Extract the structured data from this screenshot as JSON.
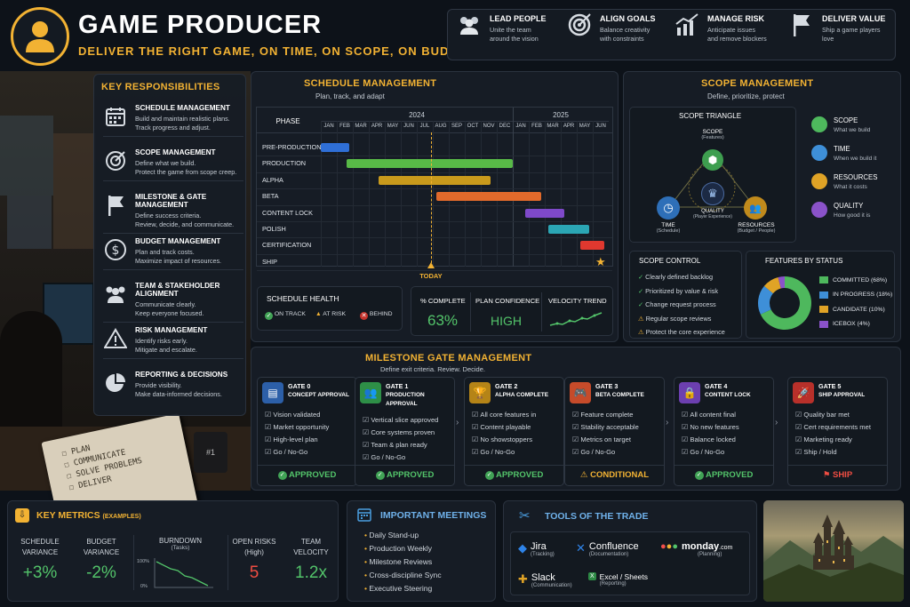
{
  "header": {
    "title": "GAME PRODUCER",
    "subtitle": "DELIVER THE RIGHT GAME, ON TIME, ON SCOPE, ON BUDGET",
    "pillars": [
      {
        "title": "LEAD PEOPLE",
        "desc1": "Unite the team",
        "desc2": "around the vision",
        "icon": "people-icon"
      },
      {
        "title": "ALIGN GOALS",
        "desc1": "Balance creativity",
        "desc2": "with constraints",
        "icon": "target-icon"
      },
      {
        "title": "MANAGE RISK",
        "desc1": "Anticipate issues",
        "desc2": "and remove blockers",
        "icon": "chart-icon"
      },
      {
        "title": "DELIVER VALUE",
        "desc1": "Ship a game players",
        "desc2": "love",
        "icon": "flag-icon"
      }
    ]
  },
  "responsibilities": {
    "title": "KEY RESPONSIBILITIES",
    "items": [
      {
        "title": "SCHEDULE MANAGEMENT",
        "d1": "Build and maintain realistic plans.",
        "d2": "Track progress and adjust.",
        "icon": "calendar-icon"
      },
      {
        "title": "SCOPE MANAGEMENT",
        "d1": "Define what we build.",
        "d2": "Protect the game from scope creep.",
        "icon": "target-icon"
      },
      {
        "title": "MILESTONE & GATE MANAGEMENT",
        "d1": "Define success criteria.",
        "d2": "Review, decide, and communicate.",
        "icon": "flag-icon"
      },
      {
        "title": "BUDGET MANAGEMENT",
        "d1": "Plan and track costs.",
        "d2": "Maximize impact of resources.",
        "icon": "dollar-icon"
      },
      {
        "title": "TEAM & STAKEHOLDER ALIGNMENT",
        "d1": "Communicate clearly.",
        "d2": "Keep everyone focused.",
        "icon": "team-icon"
      },
      {
        "title": "RISK MANAGEMENT",
        "d1": "Identify risks early.",
        "d2": "Mitigate and escalate.",
        "icon": "warning-icon"
      },
      {
        "title": "REPORTING & DECISIONS",
        "d1": "Provide visibility.",
        "d2": "Make data-informed decisions.",
        "icon": "pie-icon"
      }
    ]
  },
  "notebook": {
    "lines": [
      "PLAN",
      "COMMUNICATE",
      "SOLVE PROBLEMS",
      "DELIVER"
    ],
    "mug": "#1"
  },
  "schedule": {
    "title": "SCHEDULE MANAGEMENT",
    "subtitle": "Plan, track, and adapt",
    "phase_label": "PHASE",
    "years": [
      "2024",
      "2025"
    ],
    "months": [
      "JAN",
      "FEB",
      "MAR",
      "APR",
      "MAY",
      "JUN",
      "JUL",
      "AUG",
      "SEP",
      "OCT",
      "NOV",
      "DEC",
      "JAN",
      "FEB",
      "MAR",
      "APR",
      "MAY",
      "JUN"
    ],
    "phases": [
      {
        "name": "PRE-PRODUCTION",
        "start": 0,
        "end": 1.8,
        "color": "#2f6fd6"
      },
      {
        "name": "PRODUCTION",
        "start": 1.6,
        "end": 12.0,
        "color": "#58b947"
      },
      {
        "name": "ALPHA",
        "start": 3.6,
        "end": 10.6,
        "color": "#c99a1c"
      },
      {
        "name": "BETA",
        "start": 7.2,
        "end": 13.8,
        "color": "#e26a2b"
      },
      {
        "name": "CONTENT LOCK",
        "start": 12.8,
        "end": 15.2,
        "color": "#7e49c9"
      },
      {
        "name": "POLISH",
        "start": 14.2,
        "end": 16.8,
        "color": "#2ba6b4"
      },
      {
        "name": "CERTIFICATION",
        "start": 16.2,
        "end": 17.7,
        "color": "#e0382f"
      },
      {
        "name": "SHIP",
        "start": 17.5,
        "end": 17.5,
        "color": "#f2b233"
      }
    ],
    "today_label": "TODAY",
    "today": 6.9,
    "health": {
      "title": "SCHEDULE HEALTH",
      "on_track": "ON TRACK",
      "at_risk": "AT RISK",
      "behind": "BEHIND"
    },
    "kpis": [
      {
        "label": "% COMPLETE",
        "value": "63%"
      },
      {
        "label": "PLAN CONFIDENCE",
        "value": "HIGH"
      },
      {
        "label": "VELOCITY TREND",
        "value": ""
      }
    ]
  },
  "scope": {
    "title": "SCOPE MANAGEMENT",
    "subtitle": "Define, prioritize, protect",
    "triangle_title": "SCOPE TRIANGLE",
    "nodes": [
      {
        "t": "SCOPE",
        "s": "(Features)"
      },
      {
        "t": "TIME",
        "s": "(Schedule)"
      },
      {
        "t": "RESOURCES",
        "s": "(Budget / People)"
      },
      {
        "t": "QUALITY",
        "s": "(Player Experience)"
      }
    ],
    "legend": [
      {
        "t": "SCOPE",
        "d": "What we build",
        "color": "#4eb85d"
      },
      {
        "t": "TIME",
        "d": "When we build it",
        "color": "#3e8fd8"
      },
      {
        "t": "RESOURCES",
        "d": "What it costs",
        "color": "#e0a326"
      },
      {
        "t": "QUALITY",
        "d": "How good it is",
        "color": "#8a52c9"
      }
    ],
    "control_title": "SCOPE CONTROL",
    "control": [
      {
        "t": "Clearly defined backlog",
        "k": "check"
      },
      {
        "t": "Prioritized by value & risk",
        "k": "check"
      },
      {
        "t": "Change request process",
        "k": "check"
      },
      {
        "t": "Regular scope reviews",
        "k": "warn"
      },
      {
        "t": "Protect the core experience",
        "k": "warn"
      }
    ],
    "features_title": "FEATURES BY STATUS"
  },
  "chart_data": {
    "type": "pie",
    "title": "FEATURES BY STATUS",
    "categories": [
      "COMMITTED (68%)",
      "IN PROGRESS (18%)",
      "CANDIDATE (10%)",
      "ICEBOX (4%)"
    ],
    "values": [
      68,
      18,
      10,
      4
    ],
    "colors": [
      "#4eb85d",
      "#3e8fd8",
      "#e0a326",
      "#8a52c9"
    ]
  },
  "milestones": {
    "title": "MILESTONE GATE MANAGEMENT",
    "subtitle": "Define exit criteria. Review. Decide.",
    "gates": [
      {
        "g": "GATE 0",
        "n": "CONCEPT APPROVAL",
        "icon": "clipboard-icon",
        "bg": "#2c5fa8",
        "items": [
          "Vision validated",
          "Market opportunity",
          "High-level plan",
          "Go / No-Go"
        ],
        "status": "APPROVED",
        "kind": "ok"
      },
      {
        "g": "GATE 1",
        "n": "PRODUCTION APPROVAL",
        "icon": "team-icon",
        "bg": "#2e8f47",
        "items": [
          "Vertical slice approved",
          "Core systems proven",
          "Team & plan ready",
          "Go / No-Go"
        ],
        "status": "APPROVED",
        "kind": "ok"
      },
      {
        "g": "GATE 2",
        "n": "ALPHA COMPLETE",
        "icon": "trophy-icon",
        "bg": "#b58417",
        "items": [
          "All core features in",
          "Content playable",
          "No showstoppers",
          "Go / No-Go"
        ],
        "status": "APPROVED",
        "kind": "ok"
      },
      {
        "g": "GATE 3",
        "n": "BETA COMPLETE",
        "icon": "gamepad-icon",
        "bg": "#c64b2a",
        "items": [
          "Feature complete",
          "Stability acceptable",
          "Metrics on target",
          "Go / No-Go"
        ],
        "status": "CONDITIONAL",
        "kind": "warn"
      },
      {
        "g": "GATE 4",
        "n": "CONTENT LOCK",
        "icon": "lock-icon",
        "bg": "#6c3fb0",
        "items": [
          "All content final",
          "No new features",
          "Balance locked",
          "Go / No-Go"
        ],
        "status": "APPROVED",
        "kind": "ok"
      },
      {
        "g": "GATE 5",
        "n": "SHIP APPROVAL",
        "icon": "rocket-icon",
        "bg": "#b8302a",
        "items": [
          "Quality bar met",
          "Cert requirements met",
          "Marketing ready",
          "Ship / Hold"
        ],
        "status": "SHIP",
        "kind": "ship"
      }
    ]
  },
  "metrics": {
    "title": "KEY METRICS",
    "tag": "(EXAMPLES)",
    "items": [
      {
        "l1": "SCHEDULE",
        "l2": "VARIANCE",
        "v": "+3%",
        "color": "#53c46a"
      },
      {
        "l1": "BUDGET",
        "l2": "VARIANCE",
        "v": "-2%",
        "color": "#53c46a"
      },
      {
        "l1": "OPEN RISKS",
        "l2": "(High)",
        "v": "5",
        "color": "#ef4d42"
      },
      {
        "l1": "TEAM",
        "l2": "VELOCITY",
        "v": "1.2x",
        "color": "#53c46a"
      }
    ],
    "burndown": {
      "t": "BURNDOWN",
      "s": "(Tasks)",
      "top": "100%",
      "bottom": "0%"
    }
  },
  "meetings": {
    "title": "IMPORTANT MEETINGS",
    "items": [
      "Daily Stand-up",
      "Production Weekly",
      "Milestone Reviews",
      "Cross-discipline Sync",
      "Executive Steering"
    ]
  },
  "tools": {
    "title": "TOOLS OF THE TRADE",
    "items": [
      {
        "n": "Jira",
        "s": "(Tracking)"
      },
      {
        "n": "Confluence",
        "s": "(Documentation)"
      },
      {
        "n": "monday",
        "n2": ".com",
        "s": "(Planning)"
      },
      {
        "n": "Slack",
        "s": "(Communication)"
      },
      {
        "n": "Excel / Sheets",
        "s": "(Reporting)"
      }
    ]
  }
}
